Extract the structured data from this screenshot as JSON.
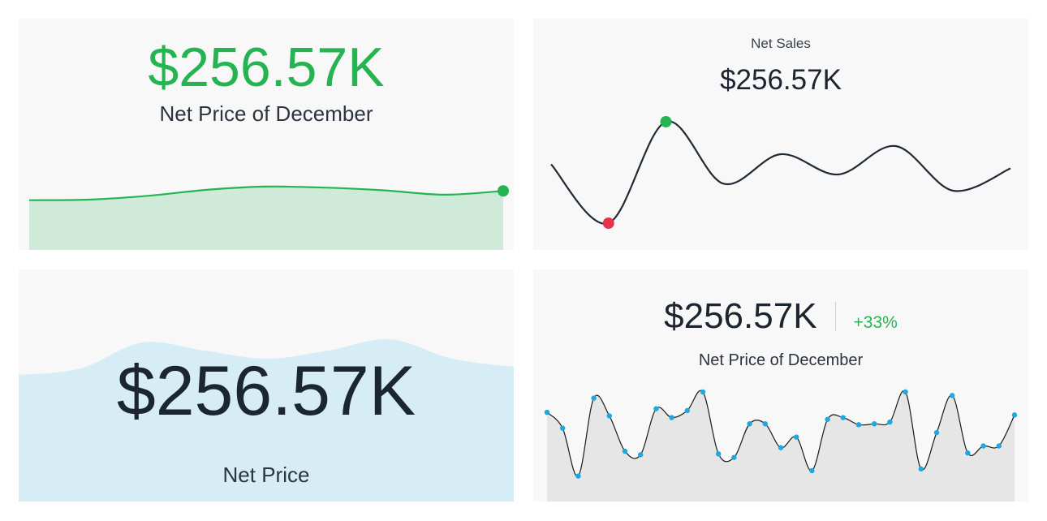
{
  "colors": {
    "green": "#25b451",
    "green_fill": "#d0eada",
    "blue_fill": "#d6edf6",
    "dark_line": "#1f2a35",
    "red_dot": "#e8334f",
    "point_blue": "#1fa8e0",
    "gray_fill": "#e6e6e6"
  },
  "cards": [
    {
      "value": "$256.57K",
      "label": "Net Price of December",
      "chart_data": {
        "type": "area",
        "values": [
          5,
          6,
          13,
          24,
          30,
          28,
          23,
          15,
          22
        ],
        "highlight": "last"
      }
    },
    {
      "value": "$256.57K",
      "label": "Net Sales",
      "chart_data": {
        "type": "line",
        "values": [
          58,
          0,
          100,
          39,
          68,
          48,
          76,
          32,
          54
        ],
        "markers": [
          {
            "index": 1,
            "role": "min"
          },
          {
            "index": 2,
            "role": "max"
          }
        ]
      }
    },
    {
      "value": "$256.57K",
      "label": "Net Price",
      "chart_data": {
        "type": "area",
        "values": [
          40,
          48,
          80,
          70,
          60,
          70,
          84,
          60,
          50
        ]
      }
    },
    {
      "value": "$256.57K",
      "change": "+33%",
      "label": "Net Price of December",
      "chart_data": {
        "type": "area",
        "values": [
          77,
          59,
          5,
          93,
          73,
          33,
          29,
          81,
          71,
          79,
          100,
          30,
          26,
          64,
          64,
          37,
          49,
          11,
          69,
          71,
          63,
          64,
          66,
          100,
          13,
          54,
          96,
          31,
          39,
          39,
          74
        ]
      }
    }
  ]
}
